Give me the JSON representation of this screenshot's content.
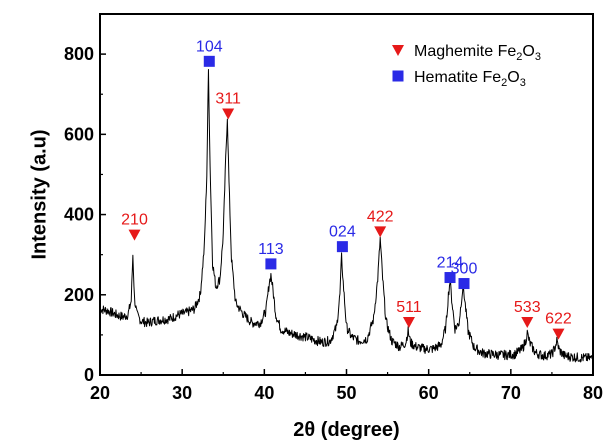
{
  "chart_data": {
    "type": "line",
    "title": "",
    "xlabel": "2θ (degree)",
    "ylabel": "Intensity (a.u)",
    "xlim": [
      20,
      80
    ],
    "ylim": [
      0,
      900
    ],
    "xticks": [
      "20",
      "30",
      "40",
      "50",
      "60",
      "70",
      "80"
    ],
    "yticks": [
      "0",
      "200",
      "400",
      "600",
      "800"
    ],
    "grid": false,
    "legend_position": "top-right",
    "colors": {
      "line": "#000000",
      "maghemite": "#e61919",
      "hematite": "#2a2ae6"
    },
    "legend": [
      {
        "id": "maghemite",
        "marker": "triangle-down",
        "text": "Maghemite Fe",
        "sub": "2",
        "text2": "O",
        "sub2": "3"
      },
      {
        "id": "hematite",
        "marker": "square",
        "text": "Hematite Fe",
        "sub": "2",
        "text2": "O",
        "sub2": "3"
      }
    ],
    "series": [
      {
        "x": [
          20,
          21,
          22,
          22.8,
          23.4,
          23.8,
          24.0,
          24.2,
          24.5,
          25,
          25.8,
          26.5,
          27.5,
          28.5,
          29.5,
          30.5,
          31.5,
          32.2,
          32.7,
          33.0,
          33.2,
          33.4,
          33.7,
          34.1,
          34.6,
          35.0,
          35.3,
          35.5,
          35.7,
          36.0,
          36.5,
          37.5,
          38.5,
          39.5,
          40.2,
          40.6,
          40.8,
          41.0,
          41.4,
          42,
          43,
          44,
          45,
          46,
          47,
          48,
          48.8,
          49.2,
          49.4,
          49.6,
          50.0,
          50.6,
          51.5,
          52.5,
          53.3,
          53.8,
          54.1,
          54.4,
          54.8,
          55.5,
          56.5,
          57.2,
          57.5,
          57.8,
          58.5,
          59.5,
          60.5,
          61.5,
          62.1,
          62.4,
          62.6,
          62.8,
          63.2,
          63.7,
          64.0,
          64.2,
          64.4,
          64.8,
          65.5,
          66.5,
          67.5,
          68.5,
          69.5,
          70.5,
          71.4,
          71.8,
          72.0,
          72.3,
          73,
          74,
          75.0,
          75.4,
          75.6,
          75.9,
          76.5,
          77.5,
          78.5,
          79.5,
          80
        ],
        "y": [
          165,
          160,
          150,
          145,
          150,
          185,
          300,
          190,
          150,
          135,
          130,
          135,
          138,
          140,
          150,
          155,
          165,
          200,
          320,
          500,
          760,
          520,
          280,
          220,
          240,
          350,
          540,
          645,
          480,
          290,
          180,
          150,
          130,
          130,
          160,
          230,
          250,
          220,
          150,
          115,
          105,
          100,
          95,
          88,
          82,
          85,
          120,
          200,
          295,
          230,
          120,
          95,
          85,
          90,
          140,
          240,
          340,
          240,
          135,
          85,
          70,
          80,
          110,
          80,
          70,
          65,
          65,
          75,
          120,
          200,
          235,
          190,
          115,
          130,
          190,
          225,
          185,
          110,
          70,
          55,
          52,
          50,
          50,
          52,
          65,
          85,
          105,
          80,
          55,
          48,
          52,
          70,
          85,
          62,
          48,
          45,
          43,
          42,
          42
        ]
      }
    ],
    "annotations": [
      {
        "label": "210",
        "group": "maghemite",
        "x": 24.2,
        "y": 350
      },
      {
        "label": "104",
        "group": "hematite",
        "x": 33.3,
        "y": 782
      },
      {
        "label": "311",
        "group": "maghemite",
        "x": 35.6,
        "y": 652
      },
      {
        "label": "113",
        "group": "hematite",
        "x": 40.8,
        "y": 277
      },
      {
        "label": "024",
        "group": "hematite",
        "x": 49.5,
        "y": 320
      },
      {
        "label": "422",
        "group": "maghemite",
        "x": 54.1,
        "y": 358
      },
      {
        "label": "511",
        "group": "maghemite",
        "x": 57.6,
        "y": 132
      },
      {
        "label": "214",
        "group": "hematite",
        "x": 62.6,
        "y": 243
      },
      {
        "label": "300",
        "group": "hematite",
        "x": 64.3,
        "y": 228
      },
      {
        "label": "533",
        "group": "maghemite",
        "x": 72.0,
        "y": 132
      },
      {
        "label": "622",
        "group": "maghemite",
        "x": 75.8,
        "y": 103
      }
    ]
  }
}
